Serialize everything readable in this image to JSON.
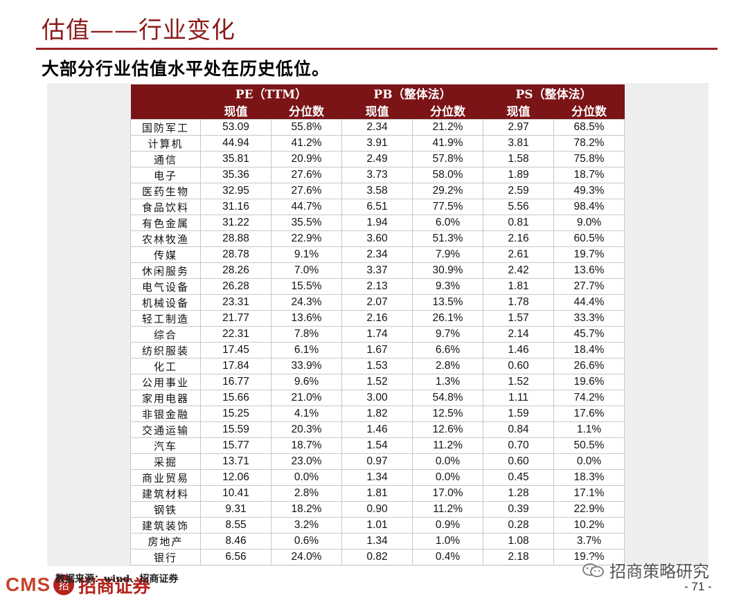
{
  "title": "估值——行业变化",
  "subtitle": "大部分行业估值水平处在历史低位。",
  "table": {
    "groups": [
      "PE（TTM）",
      "PB（整体法）",
      "PS（整体法）"
    ],
    "subheaders": [
      "现值",
      "分位数",
      "现值",
      "分位数",
      "现值",
      "分位数"
    ],
    "rows": [
      [
        "国防军工",
        "53.09",
        "55.8%",
        "2.34",
        "21.2%",
        "2.97",
        "68.5%"
      ],
      [
        "计算机",
        "44.94",
        "41.2%",
        "3.91",
        "41.9%",
        "3.81",
        "78.2%"
      ],
      [
        "通信",
        "35.81",
        "20.9%",
        "2.49",
        "57.8%",
        "1.58",
        "75.8%"
      ],
      [
        "电子",
        "35.36",
        "27.6%",
        "3.73",
        "58.0%",
        "1.89",
        "18.7%"
      ],
      [
        "医药生物",
        "32.95",
        "27.6%",
        "3.58",
        "29.2%",
        "2.59",
        "49.3%"
      ],
      [
        "食品饮料",
        "31.16",
        "44.7%",
        "6.51",
        "77.5%",
        "5.56",
        "98.4%"
      ],
      [
        "有色金属",
        "31.22",
        "35.5%",
        "1.94",
        "6.0%",
        "0.81",
        "9.0%"
      ],
      [
        "农林牧渔",
        "28.88",
        "22.9%",
        "3.60",
        "51.3%",
        "2.16",
        "60.5%"
      ],
      [
        "传媒",
        "28.78",
        "9.1%",
        "2.34",
        "7.9%",
        "2.61",
        "19.7%"
      ],
      [
        "休闲服务",
        "28.26",
        "7.0%",
        "3.37",
        "30.9%",
        "2.42",
        "13.6%"
      ],
      [
        "电气设备",
        "26.28",
        "15.5%",
        "2.13",
        "9.3%",
        "1.81",
        "27.7%"
      ],
      [
        "机械设备",
        "23.31",
        "24.3%",
        "2.07",
        "13.5%",
        "1.78",
        "44.4%"
      ],
      [
        "轻工制造",
        "21.77",
        "13.6%",
        "2.16",
        "26.1%",
        "1.57",
        "33.3%"
      ],
      [
        "综合",
        "22.31",
        "7.8%",
        "1.74",
        "9.7%",
        "2.14",
        "45.7%"
      ],
      [
        "纺织服装",
        "17.45",
        "6.1%",
        "1.67",
        "6.6%",
        "1.46",
        "18.4%"
      ],
      [
        "化工",
        "17.84",
        "33.9%",
        "1.53",
        "2.8%",
        "0.60",
        "26.6%"
      ],
      [
        "公用事业",
        "16.77",
        "9.6%",
        "1.52",
        "1.3%",
        "1.52",
        "19.6%"
      ],
      [
        "家用电器",
        "15.66",
        "21.0%",
        "3.00",
        "54.8%",
        "1.11",
        "74.2%"
      ],
      [
        "非银金融",
        "15.25",
        "4.1%",
        "1.82",
        "12.5%",
        "1.59",
        "17.6%"
      ],
      [
        "交通运输",
        "15.59",
        "20.3%",
        "1.46",
        "12.6%",
        "0.84",
        "1.1%"
      ],
      [
        "汽车",
        "15.77",
        "18.7%",
        "1.54",
        "11.2%",
        "0.70",
        "50.5%"
      ],
      [
        "采掘",
        "13.71",
        "23.0%",
        "0.97",
        "0.0%",
        "0.60",
        "0.0%"
      ],
      [
        "商业贸易",
        "12.06",
        "0.0%",
        "1.34",
        "0.0%",
        "0.45",
        "18.3%"
      ],
      [
        "建筑材料",
        "10.41",
        "2.8%",
        "1.81",
        "17.0%",
        "1.28",
        "17.1%"
      ],
      [
        "钢铁",
        "9.31",
        "18.2%",
        "0.90",
        "11.2%",
        "0.39",
        "22.9%"
      ],
      [
        "建筑装饰",
        "8.55",
        "3.2%",
        "1.01",
        "0.9%",
        "0.28",
        "10.2%"
      ],
      [
        "房地产",
        "8.46",
        "0.6%",
        "1.34",
        "1.0%",
        "1.08",
        "3.7%"
      ],
      [
        "银行",
        "6.56",
        "24.0%",
        "0.82",
        "0.4%",
        "2.18",
        "19.?%"
      ]
    ]
  },
  "source": "数据来源：wind、招商证券",
  "logo": {
    "latin": "CMS",
    "mark": "招",
    "chinese": "招商证券"
  },
  "watermark": "招商策略研究",
  "page_number": "- 71 -",
  "colors": {
    "header_bg": "#7b1416",
    "accent": "#9b2020",
    "panel_bg": "#eeeeee"
  }
}
